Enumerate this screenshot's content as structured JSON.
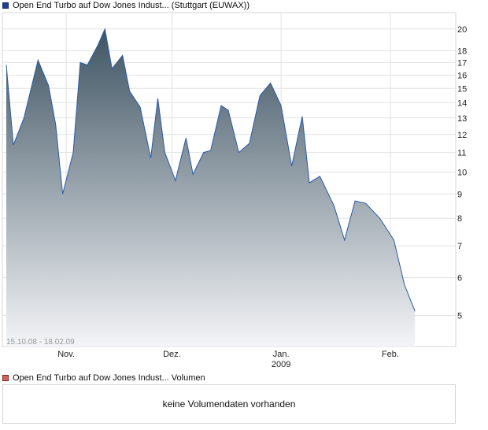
{
  "price_legend": "Open End Turbo auf Dow Jones Indust... (Stuttgart (EUWAX))",
  "volume_legend": "Open End Turbo auf Dow Jones Indust... Volumen",
  "volume_message": "keine Volumendaten vorhanden",
  "date_range": "15.10.08 - 18.02.09",
  "colors": {
    "line": "#2b5aa8",
    "fill_top": "#3f5463",
    "fill_bottom": "#f4f5f7",
    "grid": "#e2e2e2"
  },
  "chart_data": {
    "type": "area",
    "y_scale": "log",
    "ylim": [
      4.3,
      21
    ],
    "y_ticks": [
      5,
      6,
      7,
      8,
      9,
      10,
      11,
      12,
      13,
      14,
      15,
      16,
      17,
      18,
      20
    ],
    "x_tick_labels": [
      {
        "label": "Nov.",
        "x": "2008-11-01"
      },
      {
        "label": "Dez.",
        "x": "2008-12-01"
      },
      {
        "label": "Jan.",
        "sublabel": "2009",
        "x": "2009-01-01"
      },
      {
        "label": "Feb.",
        "x": "2009-02-01"
      }
    ],
    "xlim": [
      "2008-10-15",
      "2009-02-18"
    ],
    "grid": true,
    "series": [
      {
        "values": [
          [
            "2008-10-15",
            16.8
          ],
          [
            "2008-10-17",
            11.4
          ],
          [
            "2008-10-20",
            13.0
          ],
          [
            "2008-10-24",
            17.2
          ],
          [
            "2008-10-27",
            15.2
          ],
          [
            "2008-10-29",
            12.6
          ],
          [
            "2008-10-31",
            9.0
          ],
          [
            "2008-11-03",
            11.0
          ],
          [
            "2008-11-05",
            17.0
          ],
          [
            "2008-11-07",
            16.8
          ],
          [
            "2008-11-10",
            18.5
          ],
          [
            "2008-11-12",
            20.0
          ],
          [
            "2008-11-14",
            16.5
          ],
          [
            "2008-11-17",
            17.6
          ],
          [
            "2008-11-19",
            14.8
          ],
          [
            "2008-11-22",
            13.7
          ],
          [
            "2008-11-25",
            10.7
          ],
          [
            "2008-11-27",
            14.3
          ],
          [
            "2008-11-29",
            11.0
          ],
          [
            "2008-12-02",
            9.6
          ],
          [
            "2008-12-05",
            11.8
          ],
          [
            "2008-12-07",
            9.9
          ],
          [
            "2008-12-10",
            11.0
          ],
          [
            "2008-12-12",
            11.1
          ],
          [
            "2008-12-15",
            13.8
          ],
          [
            "2008-12-17",
            13.5
          ],
          [
            "2008-12-20",
            11.0
          ],
          [
            "2008-12-23",
            11.5
          ],
          [
            "2008-12-26",
            14.5
          ],
          [
            "2008-12-29",
            15.4
          ],
          [
            "2009-01-01",
            13.8
          ],
          [
            "2009-01-04",
            10.3
          ],
          [
            "2009-01-07",
            13.1
          ],
          [
            "2009-01-09",
            9.5
          ],
          [
            "2009-01-12",
            9.8
          ],
          [
            "2009-01-16",
            8.5
          ],
          [
            "2009-01-19",
            7.2
          ],
          [
            "2009-01-22",
            8.7
          ],
          [
            "2009-01-25",
            8.6
          ],
          [
            "2009-01-29",
            8.0
          ],
          [
            "2009-02-02",
            7.2
          ],
          [
            "2009-02-05",
            5.8
          ],
          [
            "2009-02-08",
            5.1
          ]
        ]
      }
    ]
  }
}
